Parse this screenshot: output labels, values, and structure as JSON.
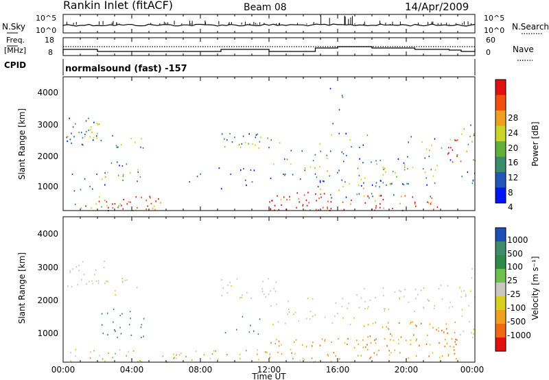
{
  "header": {
    "station": "Rankin Inlet (fitACF)",
    "beam": "Beam 08",
    "date": "14/Apr/2009"
  },
  "noise_panel": {
    "left_label": "N.Sky",
    "right_label": "N.Search",
    "left_ticks": [
      "10^5",
      "10^0"
    ],
    "right_ticks": [
      "10^5",
      "10^0"
    ]
  },
  "freq_panel": {
    "left_label_1": "Freq.",
    "left_label_2": "[MHz]",
    "right_label": "Nave",
    "cpid_label": "CPID",
    "left_ticks": [
      "18",
      "8"
    ],
    "right_ticks": [
      "60",
      "0"
    ]
  },
  "cpid_text": "normalsound (fast) -157",
  "x_axis": {
    "ticks": [
      "00:00",
      "04:00",
      "08:00",
      "12:00",
      "16:00",
      "20:00",
      "00:00"
    ],
    "label": "Time UT"
  },
  "power_panel": {
    "ylabel": "Slant Range [km]",
    "yticks": [
      "4000",
      "3000",
      "2000",
      "1000"
    ],
    "colorbar_label": "Power [dB]",
    "colorbar_ticks": [
      "28",
      "24",
      "20",
      "16",
      "12",
      "8",
      "4"
    ],
    "colors": [
      "#0015f5",
      "#2156b8",
      "#3a8a6c",
      "#62b03a",
      "#c9d42a",
      "#f0a020",
      "#f05010",
      "#e01010"
    ]
  },
  "velocity_panel": {
    "ylabel": "Slant Range [km]",
    "yticks": [
      "4000",
      "3000",
      "2000",
      "1000"
    ],
    "colorbar_label": "Velocity [m s⁻¹]",
    "colorbar_ticks": [
      "1000",
      "500",
      "100",
      "25",
      "-25",
      "-100",
      "-500",
      "-1000"
    ],
    "colors": [
      "#1e4fb4",
      "#3f8c6a",
      "#2f8a4a",
      "#6cc24a",
      "#c8c8c0",
      "#d8d020",
      "#f0a020",
      "#f06a10",
      "#e01010"
    ]
  },
  "chart_data": {
    "type": "heatmap",
    "title": "Rankin Inlet (fitACF)",
    "xlabel": "Time UT",
    "ylabel": "Slant Range [km]",
    "xlim": [
      "00:00",
      "24:00"
    ],
    "ylim": [
      180,
      4500
    ],
    "panels": [
      "Power [dB]",
      "Velocity [m s⁻¹]"
    ]
  }
}
